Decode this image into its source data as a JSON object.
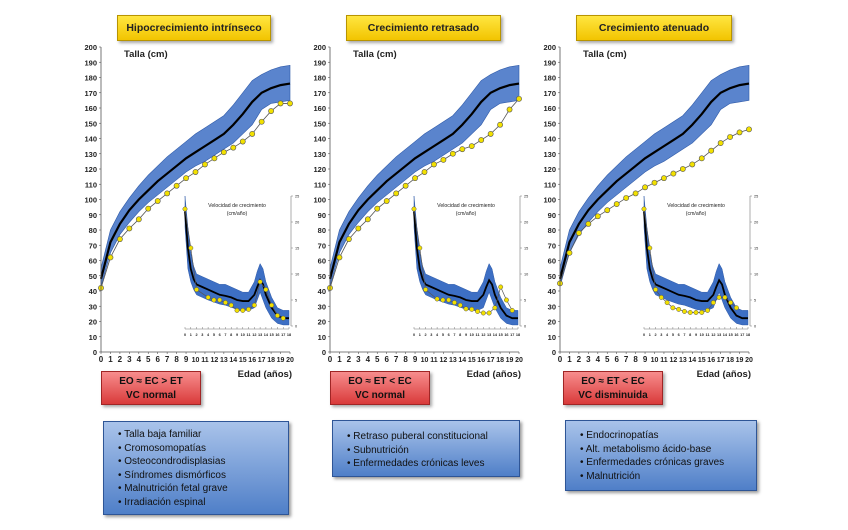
{
  "colors": {
    "band": "#3d6fc4",
    "band_edge": "#2f5aa8",
    "mean": "#000000",
    "patient_point": "#f2e000",
    "patient_line": "#555555"
  },
  "reference": {
    "height": {
      "x": [
        0,
        1,
        2,
        3,
        4,
        5,
        6,
        7,
        8,
        9,
        10,
        11,
        12,
        13,
        14,
        15,
        16,
        17,
        18,
        19,
        20
      ],
      "mean": [
        48,
        72,
        84,
        93,
        100,
        106,
        112,
        117,
        122,
        127,
        131,
        135,
        139,
        143,
        149,
        156,
        164,
        170,
        173,
        175,
        176
      ],
      "upper": [
        55,
        80,
        92,
        101,
        109,
        116,
        122,
        128,
        133,
        138,
        143,
        147,
        151,
        155,
        162,
        170,
        178,
        182,
        185,
        187,
        188
      ],
      "lower": [
        43,
        65,
        77,
        85,
        92,
        98,
        103,
        108,
        113,
        118,
        122,
        125,
        129,
        133,
        137,
        143,
        149,
        159,
        163,
        164,
        165
      ]
    },
    "velocity": {
      "x": [
        0,
        0.5,
        1,
        1.5,
        2,
        3,
        4,
        5,
        6,
        7,
        8,
        9,
        10,
        11,
        12,
        12.5,
        13,
        13.5,
        14,
        15,
        16,
        17,
        18
      ],
      "mean": [
        22,
        15,
        11,
        9,
        8,
        7.5,
        7,
        6.5,
        6,
        5.8,
        5.5,
        5,
        4.8,
        4.8,
        6,
        7.5,
        8.8,
        8,
        6,
        3.5,
        2,
        1.5,
        1.5
      ],
      "upper": [
        25,
        19,
        14,
        11.5,
        10,
        9.5,
        9,
        8.5,
        8,
        8,
        7.5,
        7,
        6.5,
        6.5,
        8.5,
        10.5,
        12,
        11,
        8.5,
        5.5,
        3.5,
        3,
        3
      ],
      "lower": [
        19,
        11,
        8.5,
        7,
        6,
        5.5,
        5,
        4.6,
        4.2,
        4,
        3.6,
        3.2,
        3,
        3,
        3.5,
        5,
        6.5,
        5,
        3.5,
        1.5,
        0.5,
        0.2,
        0.2
      ]
    }
  },
  "chart_data": [
    {
      "type": "line",
      "title": "Hipocrecimiento intrínseco",
      "ylabel": "Talla (cm)",
      "xlabel": "Edad (años)",
      "xlim": [
        0,
        20
      ],
      "ylim": [
        0,
        200
      ],
      "xticks": [
        0,
        1,
        2,
        3,
        4,
        5,
        6,
        7,
        8,
        9,
        10,
        11,
        12,
        13,
        14,
        15,
        16,
        17,
        18,
        19,
        20
      ],
      "yticks": [
        0,
        10,
        20,
        30,
        40,
        50,
        60,
        70,
        80,
        90,
        100,
        110,
        120,
        130,
        140,
        150,
        160,
        170,
        180,
        190,
        200
      ],
      "series": [
        {
          "name": "patient",
          "x": [
            0,
            1,
            2,
            3,
            4,
            5,
            6,
            7,
            8,
            9,
            10,
            11,
            12,
            13,
            14,
            15,
            16,
            17,
            18,
            19,
            20
          ],
          "values": [
            42,
            62,
            74,
            81,
            87,
            94,
            99,
            104,
            109,
            114,
            118,
            123,
            127,
            131,
            134,
            138,
            143,
            151,
            158,
            163,
            163
          ]
        }
      ],
      "inset": {
        "title": "Velocidad de crecimiento",
        "subtitle": "(cm/año)",
        "xlim": [
          0,
          18
        ],
        "ylim": [
          0,
          25
        ],
        "xticks": [
          0,
          1,
          2,
          3,
          4,
          5,
          6,
          7,
          8,
          9,
          10,
          11,
          12,
          13,
          14,
          15,
          16,
          17,
          18
        ],
        "yticks": [
          0,
          5,
          10,
          15,
          20,
          25
        ],
        "patient": {
          "x": [
            0,
            1,
            2,
            4,
            5,
            6,
            7,
            8,
            9,
            10,
            11,
            12,
            13,
            14,
            15,
            16,
            17
          ],
          "values": [
            22.5,
            15,
            7,
            5.5,
            5,
            5,
            4.5,
            4,
            3,
            3,
            3.2,
            4,
            8.5,
            7,
            4,
            2,
            1.5
          ]
        }
      },
      "status": {
        "line1": "EO ≈ EC > ET",
        "line2": "VC normal"
      },
      "causes": [
        "Talla baja familiar",
        "Cromosomopatías",
        "Osteocondrodisplasias",
        "Síndromes dismórficos",
        "Malnutrición fetal grave",
        "Irradiación espinal"
      ]
    },
    {
      "type": "line",
      "title": "Crecimiento retrasado",
      "ylabel": "Talla (cm)",
      "xlabel": "Edad (años)",
      "xlim": [
        0,
        20
      ],
      "ylim": [
        0,
        200
      ],
      "xticks": [
        0,
        1,
        2,
        3,
        4,
        5,
        6,
        7,
        8,
        9,
        10,
        11,
        12,
        13,
        14,
        15,
        16,
        17,
        18,
        19,
        20
      ],
      "yticks": [
        0,
        10,
        20,
        30,
        40,
        50,
        60,
        70,
        80,
        90,
        100,
        110,
        120,
        130,
        140,
        150,
        160,
        170,
        180,
        190,
        200
      ],
      "series": [
        {
          "name": "patient",
          "x": [
            0,
            1,
            2,
            3,
            4,
            5,
            6,
            7,
            8,
            9,
            10,
            11,
            12,
            13,
            14,
            15,
            16,
            17,
            18,
            19,
            20
          ],
          "values": [
            42,
            62,
            74,
            81,
            87,
            94,
            99,
            104,
            109,
            114,
            118,
            123,
            126,
            130,
            133,
            135,
            139,
            143,
            149,
            159,
            166
          ]
        }
      ],
      "inset": {
        "title": "Velocidad de crecimiento",
        "subtitle": "(cm/año)",
        "xlim": [
          0,
          18
        ],
        "ylim": [
          0,
          25
        ],
        "xticks": [
          0,
          1,
          2,
          3,
          4,
          5,
          6,
          7,
          8,
          9,
          10,
          11,
          12,
          13,
          14,
          15,
          16,
          17,
          18
        ],
        "yticks": [
          0,
          5,
          10,
          15,
          20,
          25
        ],
        "patient": {
          "x": [
            0,
            1,
            2,
            4,
            5,
            6,
            7,
            8,
            9,
            10,
            11,
            12,
            13,
            14,
            15,
            16,
            17
          ],
          "values": [
            22.5,
            15,
            7,
            5.2,
            5,
            5,
            4.5,
            4,
            3.3,
            3.2,
            2.8,
            2.5,
            2.5,
            3.5,
            7.5,
            5,
            3
          ]
        }
      },
      "status": {
        "line1": "EO ≈ ET < EC",
        "line2": "VC normal"
      },
      "causes": [
        "Retraso puberal constitucional",
        "Subnutrición",
        "Enfermedades crónicas leves"
      ]
    },
    {
      "type": "line",
      "title": "Crecimiento atenuado",
      "ylabel": "Talla (cm)",
      "xlabel": "Edad (años)",
      "xlim": [
        0,
        20
      ],
      "ylim": [
        0,
        200
      ],
      "xticks": [
        0,
        1,
        2,
        3,
        4,
        5,
        6,
        7,
        8,
        9,
        10,
        11,
        12,
        13,
        14,
        15,
        16,
        17,
        18,
        19,
        20
      ],
      "yticks": [
        0,
        10,
        20,
        30,
        40,
        50,
        60,
        70,
        80,
        90,
        100,
        110,
        120,
        130,
        140,
        150,
        160,
        170,
        180,
        190,
        200
      ],
      "series": [
        {
          "name": "patient",
          "x": [
            0,
            1,
            2,
            3,
            4,
            5,
            6,
            7,
            8,
            9,
            10,
            11,
            12,
            13,
            14,
            15,
            16,
            17,
            18,
            19,
            20
          ],
          "values": [
            45,
            65,
            78,
            84,
            89,
            93,
            97,
            101,
            104,
            108,
            111,
            114,
            117,
            120,
            123,
            127,
            132,
            137,
            141,
            144,
            146
          ]
        }
      ],
      "inset": {
        "title": "Velocidad de crecimiento",
        "subtitle": "(cm/año)",
        "xlim": [
          0,
          18
        ],
        "ylim": [
          0,
          25
        ],
        "xticks": [
          0,
          1,
          2,
          3,
          4,
          5,
          6,
          7,
          8,
          9,
          10,
          11,
          12,
          13,
          14,
          15,
          16,
          17,
          18
        ],
        "yticks": [
          0,
          5,
          10,
          15,
          20,
          25
        ],
        "patient": {
          "x": [
            0,
            1,
            2,
            3,
            4,
            5,
            6,
            7,
            8,
            9,
            10,
            11,
            12,
            13,
            14,
            15,
            16
          ],
          "values": [
            22.5,
            15,
            7,
            5.5,
            4.5,
            3.5,
            3.2,
            2.8,
            2.6,
            2.6,
            2.6,
            3,
            4.5,
            5.5,
            5.5,
            4.5,
            3.5
          ]
        }
      },
      "status": {
        "line1": "EO ≈ ET < EC",
        "line2": "VC disminuida"
      },
      "causes": [
        "Endocrinopatías",
        "Alt. metabolismo ácido-base",
        "Enfermedades crónicas graves",
        "Malnutrición"
      ]
    }
  ]
}
